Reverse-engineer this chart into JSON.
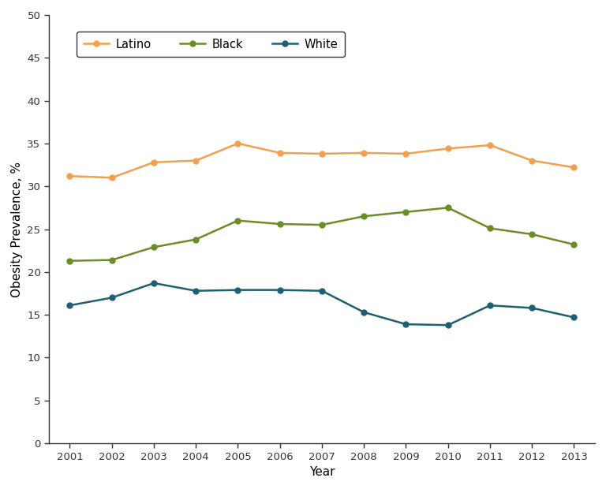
{
  "years": [
    2001,
    2002,
    2003,
    2004,
    2005,
    2006,
    2007,
    2008,
    2009,
    2010,
    2011,
    2012,
    2013
  ],
  "latino": [
    31.2,
    31.0,
    32.8,
    33.0,
    35.0,
    33.9,
    33.8,
    33.9,
    33.8,
    34.4,
    34.8,
    33.0,
    32.2
  ],
  "black": [
    21.3,
    21.4,
    22.9,
    23.8,
    26.0,
    25.6,
    25.5,
    26.5,
    27.0,
    27.5,
    25.1,
    24.4,
    23.2
  ],
  "white": [
    16.1,
    17.0,
    18.7,
    17.8,
    17.9,
    17.9,
    17.8,
    15.3,
    13.9,
    13.8,
    16.1,
    15.8,
    14.7
  ],
  "latino_color": "#F0A050",
  "black_color": "#6B8C28",
  "white_color": "#1F5F72",
  "ylim": [
    0,
    50
  ],
  "yticks": [
    0,
    5,
    10,
    15,
    20,
    25,
    30,
    35,
    40,
    45,
    50
  ],
  "ylabel": "Obesity Prevalence, %",
  "xlabel": "Year",
  "legend_labels": [
    "Latino",
    "Black",
    "White"
  ],
  "bg_color": "#ffffff",
  "linewidth": 1.8,
  "markersize": 5
}
